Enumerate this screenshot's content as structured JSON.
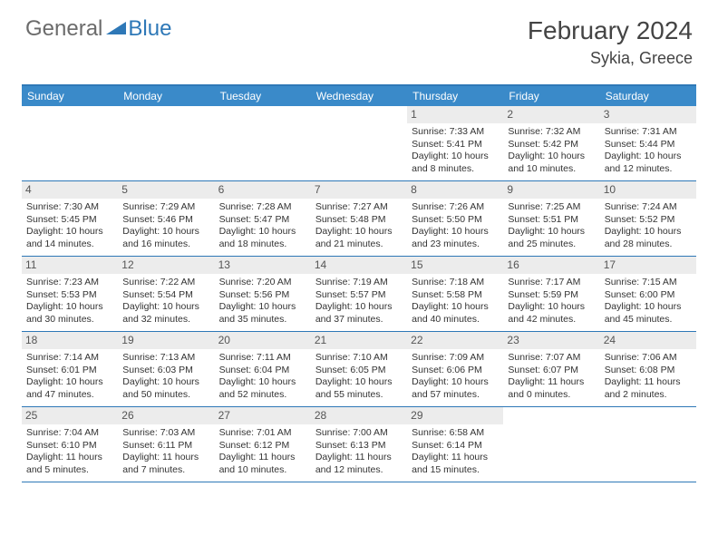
{
  "brand": {
    "part1": "General",
    "part2": "Blue"
  },
  "title": "February 2024",
  "location": "Sykia, Greece",
  "colors": {
    "header_bg": "#3a8ac9",
    "border": "#2e78b7",
    "daynum_bg": "#ececec",
    "text": "#333333",
    "logo_gray": "#6b6b6b",
    "logo_blue": "#2e78b7"
  },
  "dayHeaders": [
    "Sunday",
    "Monday",
    "Tuesday",
    "Wednesday",
    "Thursday",
    "Friday",
    "Saturday"
  ],
  "weeks": [
    [
      null,
      null,
      null,
      null,
      {
        "d": "1",
        "sr": "Sunrise: 7:33 AM",
        "ss": "Sunset: 5:41 PM",
        "dl1": "Daylight: 10 hours",
        "dl2": "and 8 minutes."
      },
      {
        "d": "2",
        "sr": "Sunrise: 7:32 AM",
        "ss": "Sunset: 5:42 PM",
        "dl1": "Daylight: 10 hours",
        "dl2": "and 10 minutes."
      },
      {
        "d": "3",
        "sr": "Sunrise: 7:31 AM",
        "ss": "Sunset: 5:44 PM",
        "dl1": "Daylight: 10 hours",
        "dl2": "and 12 minutes."
      }
    ],
    [
      {
        "d": "4",
        "sr": "Sunrise: 7:30 AM",
        "ss": "Sunset: 5:45 PM",
        "dl1": "Daylight: 10 hours",
        "dl2": "and 14 minutes."
      },
      {
        "d": "5",
        "sr": "Sunrise: 7:29 AM",
        "ss": "Sunset: 5:46 PM",
        "dl1": "Daylight: 10 hours",
        "dl2": "and 16 minutes."
      },
      {
        "d": "6",
        "sr": "Sunrise: 7:28 AM",
        "ss": "Sunset: 5:47 PM",
        "dl1": "Daylight: 10 hours",
        "dl2": "and 18 minutes."
      },
      {
        "d": "7",
        "sr": "Sunrise: 7:27 AM",
        "ss": "Sunset: 5:48 PM",
        "dl1": "Daylight: 10 hours",
        "dl2": "and 21 minutes."
      },
      {
        "d": "8",
        "sr": "Sunrise: 7:26 AM",
        "ss": "Sunset: 5:50 PM",
        "dl1": "Daylight: 10 hours",
        "dl2": "and 23 minutes."
      },
      {
        "d": "9",
        "sr": "Sunrise: 7:25 AM",
        "ss": "Sunset: 5:51 PM",
        "dl1": "Daylight: 10 hours",
        "dl2": "and 25 minutes."
      },
      {
        "d": "10",
        "sr": "Sunrise: 7:24 AM",
        "ss": "Sunset: 5:52 PM",
        "dl1": "Daylight: 10 hours",
        "dl2": "and 28 minutes."
      }
    ],
    [
      {
        "d": "11",
        "sr": "Sunrise: 7:23 AM",
        "ss": "Sunset: 5:53 PM",
        "dl1": "Daylight: 10 hours",
        "dl2": "and 30 minutes."
      },
      {
        "d": "12",
        "sr": "Sunrise: 7:22 AM",
        "ss": "Sunset: 5:54 PM",
        "dl1": "Daylight: 10 hours",
        "dl2": "and 32 minutes."
      },
      {
        "d": "13",
        "sr": "Sunrise: 7:20 AM",
        "ss": "Sunset: 5:56 PM",
        "dl1": "Daylight: 10 hours",
        "dl2": "and 35 minutes."
      },
      {
        "d": "14",
        "sr": "Sunrise: 7:19 AM",
        "ss": "Sunset: 5:57 PM",
        "dl1": "Daylight: 10 hours",
        "dl2": "and 37 minutes."
      },
      {
        "d": "15",
        "sr": "Sunrise: 7:18 AM",
        "ss": "Sunset: 5:58 PM",
        "dl1": "Daylight: 10 hours",
        "dl2": "and 40 minutes."
      },
      {
        "d": "16",
        "sr": "Sunrise: 7:17 AM",
        "ss": "Sunset: 5:59 PM",
        "dl1": "Daylight: 10 hours",
        "dl2": "and 42 minutes."
      },
      {
        "d": "17",
        "sr": "Sunrise: 7:15 AM",
        "ss": "Sunset: 6:00 PM",
        "dl1": "Daylight: 10 hours",
        "dl2": "and 45 minutes."
      }
    ],
    [
      {
        "d": "18",
        "sr": "Sunrise: 7:14 AM",
        "ss": "Sunset: 6:01 PM",
        "dl1": "Daylight: 10 hours",
        "dl2": "and 47 minutes."
      },
      {
        "d": "19",
        "sr": "Sunrise: 7:13 AM",
        "ss": "Sunset: 6:03 PM",
        "dl1": "Daylight: 10 hours",
        "dl2": "and 50 minutes."
      },
      {
        "d": "20",
        "sr": "Sunrise: 7:11 AM",
        "ss": "Sunset: 6:04 PM",
        "dl1": "Daylight: 10 hours",
        "dl2": "and 52 minutes."
      },
      {
        "d": "21",
        "sr": "Sunrise: 7:10 AM",
        "ss": "Sunset: 6:05 PM",
        "dl1": "Daylight: 10 hours",
        "dl2": "and 55 minutes."
      },
      {
        "d": "22",
        "sr": "Sunrise: 7:09 AM",
        "ss": "Sunset: 6:06 PM",
        "dl1": "Daylight: 10 hours",
        "dl2": "and 57 minutes."
      },
      {
        "d": "23",
        "sr": "Sunrise: 7:07 AM",
        "ss": "Sunset: 6:07 PM",
        "dl1": "Daylight: 11 hours",
        "dl2": "and 0 minutes."
      },
      {
        "d": "24",
        "sr": "Sunrise: 7:06 AM",
        "ss": "Sunset: 6:08 PM",
        "dl1": "Daylight: 11 hours",
        "dl2": "and 2 minutes."
      }
    ],
    [
      {
        "d": "25",
        "sr": "Sunrise: 7:04 AM",
        "ss": "Sunset: 6:10 PM",
        "dl1": "Daylight: 11 hours",
        "dl2": "and 5 minutes."
      },
      {
        "d": "26",
        "sr": "Sunrise: 7:03 AM",
        "ss": "Sunset: 6:11 PM",
        "dl1": "Daylight: 11 hours",
        "dl2": "and 7 minutes."
      },
      {
        "d": "27",
        "sr": "Sunrise: 7:01 AM",
        "ss": "Sunset: 6:12 PM",
        "dl1": "Daylight: 11 hours",
        "dl2": "and 10 minutes."
      },
      {
        "d": "28",
        "sr": "Sunrise: 7:00 AM",
        "ss": "Sunset: 6:13 PM",
        "dl1": "Daylight: 11 hours",
        "dl2": "and 12 minutes."
      },
      {
        "d": "29",
        "sr": "Sunrise: 6:58 AM",
        "ss": "Sunset: 6:14 PM",
        "dl1": "Daylight: 11 hours",
        "dl2": "and 15 minutes."
      },
      null,
      null
    ]
  ]
}
